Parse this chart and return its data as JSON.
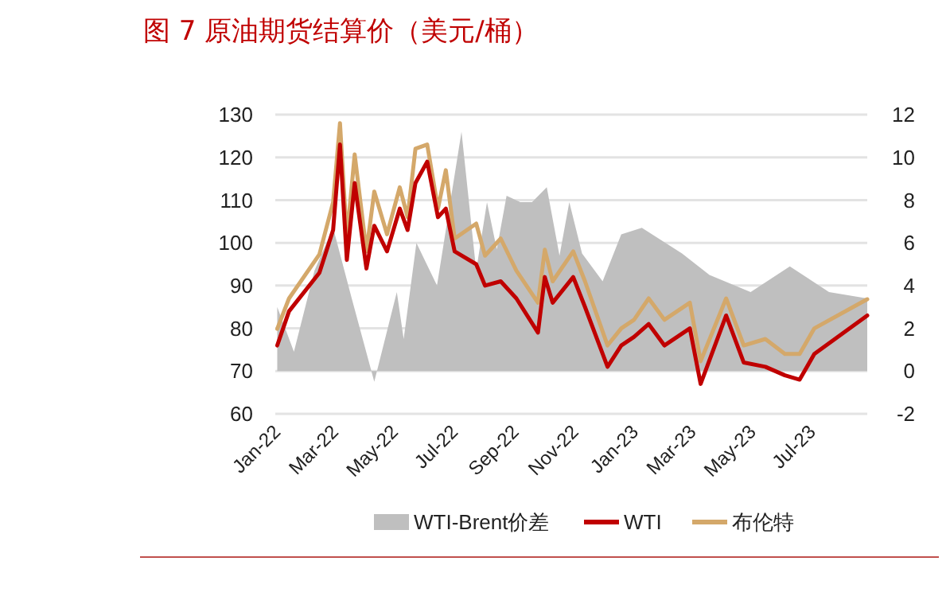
{
  "chart_data": {
    "type": "line",
    "title": "图 7   原油期货结算价（美元/桶）",
    "x": [
      "2022-01-03",
      "2022-01-15",
      "2022-02-15",
      "2022-03-01",
      "2022-03-08",
      "2022-03-15",
      "2022-03-23",
      "2022-04-04",
      "2022-04-12",
      "2022-04-25",
      "2022-05-08",
      "2022-05-16",
      "2022-05-24",
      "2022-06-05",
      "2022-06-16",
      "2022-06-24",
      "2022-07-03",
      "2022-07-25",
      "2022-08-03",
      "2022-08-19",
      "2022-09-04",
      "2022-09-26",
      "2022-10-03",
      "2022-10-11",
      "2022-11-01",
      "2022-11-13",
      "2022-12-06",
      "2022-12-20",
      "2023-01-02",
      "2023-01-17",
      "2023-02-02",
      "2023-02-28",
      "2023-03-11",
      "2023-04-06",
      "2023-04-24",
      "2023-05-16",
      "2023-06-05",
      "2023-06-20",
      "2023-07-05",
      "2023-08-28"
    ],
    "series": [
      {
        "name": "WTI-Brent价差",
        "type": "area",
        "axis": "y2",
        "color": "#bfbfbf",
        "x": [
          "2022-01-03",
          "2022-01-20",
          "2022-02-10",
          "2022-03-01",
          "2022-03-20",
          "2022-04-12",
          "2022-05-05",
          "2022-05-12",
          "2022-05-25",
          "2022-06-15",
          "2022-07-10",
          "2022-07-25",
          "2022-08-05",
          "2022-08-15",
          "2022-08-25",
          "2022-09-08",
          "2022-09-20",
          "2022-10-05",
          "2022-10-18",
          "2022-10-28",
          "2022-11-10",
          "2022-12-01",
          "2022-12-20",
          "2023-01-10",
          "2023-02-20",
          "2023-03-20",
          "2023-05-01",
          "2023-06-10",
          "2023-07-20",
          "2023-08-28"
        ],
        "values": [
          3.0,
          0.9,
          4.7,
          6.7,
          3.4,
          -0.5,
          3.7,
          1.5,
          6.0,
          4.0,
          11.2,
          4.7,
          7.9,
          5.7,
          8.2,
          7.9,
          7.9,
          8.6,
          5.4,
          7.9,
          5.5,
          4.2,
          6.4,
          6.7,
          5.5,
          4.5,
          3.7,
          4.9,
          3.7,
          3.4
        ]
      },
      {
        "name": "WTI",
        "color": "#c00000",
        "values": [
          76,
          84,
          93,
          103,
          123,
          96,
          114,
          94,
          104,
          98,
          108,
          103,
          114,
          119,
          106,
          108,
          98,
          95,
          90,
          91,
          87,
          79,
          92,
          86,
          92,
          85,
          71,
          76,
          78,
          81,
          76,
          80,
          67,
          83,
          72,
          71,
          69,
          68,
          74,
          83
        ]
      },
      {
        "name": "布伦特",
        "color": "#d4a86a",
        "values": [
          79.9,
          87,
          97.3,
          109.5,
          128,
          101,
          120.7,
          98,
          112,
          102,
          113,
          106,
          122,
          123,
          108,
          117,
          101,
          104.5,
          97,
          101,
          93.5,
          86,
          98.4,
          91,
          98,
          91,
          76,
          80,
          82,
          87,
          82,
          86,
          72.3,
          87,
          76,
          77.5,
          74,
          74,
          80,
          86.8
        ]
      }
    ],
    "xlim": [
      "2022-01-01",
      "2023-08-28"
    ],
    "xticks": [
      {
        "value": "2022-01-01",
        "label": "Jan-22"
      },
      {
        "value": "2022-03-01",
        "label": "Mar-22"
      },
      {
        "value": "2022-05-01",
        "label": "May-22"
      },
      {
        "value": "2022-07-01",
        "label": "Jul-22"
      },
      {
        "value": "2022-09-01",
        "label": "Sep-22"
      },
      {
        "value": "2022-11-01",
        "label": "Nov-22"
      },
      {
        "value": "2023-01-01",
        "label": "Jan-23"
      },
      {
        "value": "2023-03-01",
        "label": "Mar-23"
      },
      {
        "value": "2023-05-01",
        "label": "May-23"
      },
      {
        "value": "2023-07-01",
        "label": "Jul-23"
      }
    ],
    "ylim": [
      60,
      130
    ],
    "yticks": [
      60,
      70,
      80,
      90,
      100,
      110,
      120,
      130
    ],
    "y2lim": [
      -2,
      12
    ],
    "y2ticks": [
      -2,
      0,
      2,
      4,
      6,
      8,
      10,
      12
    ],
    "grid": "y",
    "legend": "bottom"
  }
}
